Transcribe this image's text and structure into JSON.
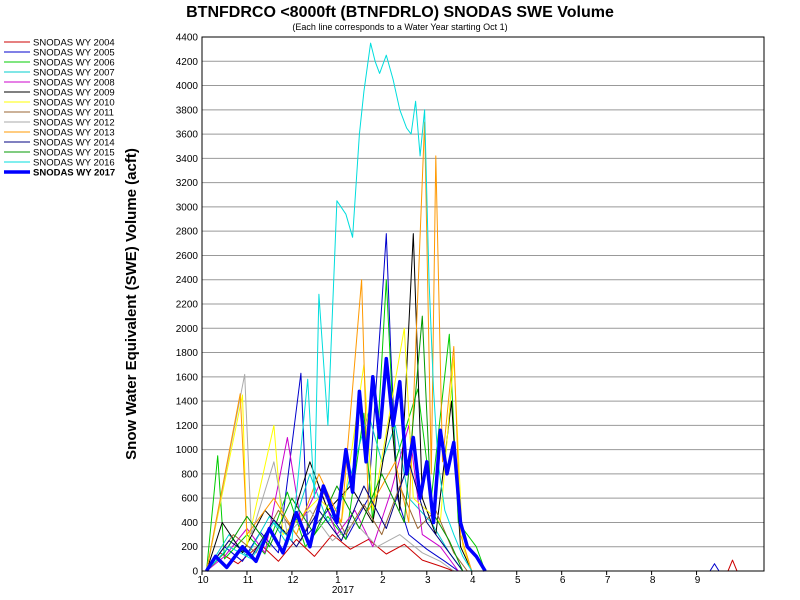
{
  "chart_data": {
    "type": "line",
    "title": "BTNFDRCO <8000ft (BTNFDRLO) SNODAS SWE Volume",
    "subtitle": "(Each line corresponds to a Water Year starting Oct 1)",
    "ylabel": "Snow Water Equivalent (SWE) Volume (acft)",
    "xlabel": "",
    "year_label": "2017",
    "ylim": [
      0,
      4400
    ],
    "y_ticks": [
      "0",
      "200",
      "400",
      "600",
      "800",
      "1000",
      "1200",
      "1400",
      "1600",
      "1800",
      "2000",
      "2200",
      "2400",
      "2600",
      "2800",
      "3000",
      "3200",
      "3400",
      "3600",
      "3800",
      "4000",
      "4200",
      "4400"
    ],
    "x_ticks": [
      "10",
      "11",
      "12",
      "1",
      "2",
      "3",
      "4",
      "5",
      "6",
      "7",
      "8",
      "9"
    ],
    "grid": "horizontal",
    "legend_placement": "top-left",
    "series": [
      {
        "name": "SNODAS WY 2004",
        "color": "#cc0000",
        "width": 1,
        "points": [
          [
            0.1,
            0
          ],
          [
            0.4,
            150
          ],
          [
            0.8,
            60
          ],
          [
            1.3,
            220
          ],
          [
            1.7,
            80
          ],
          [
            2.1,
            260
          ],
          [
            2.5,
            120
          ],
          [
            2.9,
            300
          ],
          [
            3.3,
            180
          ],
          [
            3.7,
            260
          ],
          [
            4.1,
            140
          ],
          [
            4.5,
            220
          ],
          [
            4.9,
            90
          ],
          [
            5.3,
            40
          ],
          [
            5.6,
            0
          ],
          [
            11.7,
            0
          ],
          [
            11.8,
            90
          ],
          [
            11.9,
            0
          ]
        ]
      },
      {
        "name": "SNODAS WY 2005",
        "color": "#0000cc",
        "width": 1,
        "points": [
          [
            0.1,
            0
          ],
          [
            0.5,
            200
          ],
          [
            0.9,
            80
          ],
          [
            1.3,
            320
          ],
          [
            1.7,
            150
          ],
          [
            2.2,
            1630
          ],
          [
            2.35,
            300
          ],
          [
            2.8,
            500
          ],
          [
            3.2,
            260
          ],
          [
            3.7,
            600
          ],
          [
            4.0,
            2200
          ],
          [
            4.1,
            2780
          ],
          [
            4.2,
            1800
          ],
          [
            4.35,
            600
          ],
          [
            4.6,
            300
          ],
          [
            5.0,
            180
          ],
          [
            5.4,
            80
          ],
          [
            5.7,
            0
          ],
          [
            11.3,
            0
          ],
          [
            11.4,
            60
          ],
          [
            11.5,
            0
          ]
        ]
      },
      {
        "name": "SNODAS WY 2006",
        "color": "#00cc00",
        "width": 1,
        "points": [
          [
            0.1,
            0
          ],
          [
            0.35,
            950
          ],
          [
            0.5,
            100
          ],
          [
            1.0,
            300
          ],
          [
            1.4,
            140
          ],
          [
            1.9,
            650
          ],
          [
            2.3,
            200
          ],
          [
            2.8,
            450
          ],
          [
            3.2,
            260
          ],
          [
            3.6,
            1300
          ],
          [
            3.8,
            400
          ],
          [
            4.1,
            2400
          ],
          [
            4.3,
            900
          ],
          [
            4.8,
            1500
          ],
          [
            5.1,
            600
          ],
          [
            5.5,
            1950
          ],
          [
            5.7,
            400
          ],
          [
            6.1,
            200
          ],
          [
            6.3,
            0
          ]
        ]
      },
      {
        "name": "SNODAS WY 2007",
        "color": "#00cccc",
        "width": 1,
        "points": [
          [
            0.1,
            0
          ],
          [
            0.6,
            300
          ],
          [
            1.0,
            120
          ],
          [
            1.5,
            450
          ],
          [
            1.9,
            220
          ],
          [
            2.4,
            800
          ],
          [
            2.8,
            400
          ],
          [
            3.2,
            650
          ],
          [
            3.7,
            1300
          ],
          [
            4.0,
            900
          ],
          [
            4.3,
            1200
          ],
          [
            4.6,
            600
          ],
          [
            5.1,
            400
          ],
          [
            5.5,
            150
          ],
          [
            5.8,
            0
          ]
        ]
      },
      {
        "name": "SNODAS WY 2008",
        "color": "#cc00cc",
        "width": 1,
        "points": [
          [
            0.1,
            0
          ],
          [
            0.5,
            120
          ],
          [
            1.0,
            350
          ],
          [
            1.4,
            150
          ],
          [
            1.9,
            1100
          ],
          [
            2.2,
            400
          ],
          [
            2.6,
            700
          ],
          [
            3.0,
            300
          ],
          [
            3.4,
            500
          ],
          [
            3.8,
            200
          ],
          [
            4.2,
            650
          ],
          [
            4.6,
            1200
          ],
          [
            4.9,
            300
          ],
          [
            5.3,
            200
          ],
          [
            5.7,
            0
          ]
        ]
      },
      {
        "name": "SNODAS WY 2009",
        "color": "#000000",
        "width": 1,
        "points": [
          [
            0.1,
            0
          ],
          [
            0.45,
            400
          ],
          [
            0.9,
            150
          ],
          [
            1.4,
            500
          ],
          [
            1.9,
            300
          ],
          [
            2.4,
            900
          ],
          [
            2.8,
            500
          ],
          [
            3.3,
            700
          ],
          [
            3.8,
            400
          ],
          [
            4.2,
            1300
          ],
          [
            4.4,
            500
          ],
          [
            4.7,
            2780
          ],
          [
            4.9,
            600
          ],
          [
            5.2,
            300
          ],
          [
            5.55,
            1400
          ],
          [
            5.75,
            200
          ],
          [
            6.0,
            0
          ]
        ]
      },
      {
        "name": "SNODAS WY 2010",
        "color": "#ffff00",
        "width": 1,
        "points": [
          [
            0.1,
            0
          ],
          [
            0.9,
            1450
          ],
          [
            1.0,
            200
          ],
          [
            1.6,
            1200
          ],
          [
            1.8,
            300
          ],
          [
            2.6,
            600
          ],
          [
            3.1,
            400
          ],
          [
            3.6,
            1700
          ],
          [
            3.8,
            500
          ],
          [
            4.5,
            2000
          ],
          [
            4.7,
            600
          ],
          [
            5.3,
            400
          ],
          [
            5.6,
            1760
          ],
          [
            5.8,
            200
          ],
          [
            6.0,
            0
          ]
        ]
      },
      {
        "name": "SNODAS WY 2011",
        "color": "#996633",
        "width": 1,
        "points": [
          [
            0.1,
            0
          ],
          [
            0.7,
            300
          ],
          [
            1.2,
            150
          ],
          [
            1.7,
            500
          ],
          [
            2.2,
            250
          ],
          [
            2.7,
            650
          ],
          [
            3.2,
            300
          ],
          [
            3.6,
            550
          ],
          [
            4.0,
            300
          ],
          [
            4.4,
            700
          ],
          [
            4.8,
            350
          ],
          [
            5.2,
            500
          ],
          [
            5.6,
            150
          ],
          [
            5.9,
            0
          ]
        ]
      },
      {
        "name": "SNODAS WY 2012",
        "color": "#aaaaaa",
        "width": 1,
        "points": [
          [
            0.1,
            0
          ],
          [
            0.95,
            1620
          ],
          [
            1.1,
            300
          ],
          [
            1.6,
            900
          ],
          [
            1.9,
            300
          ],
          [
            2.4,
            500
          ],
          [
            2.9,
            250
          ],
          [
            3.4,
            400
          ],
          [
            3.9,
            200
          ],
          [
            4.4,
            300
          ],
          [
            4.9,
            150
          ],
          [
            5.3,
            80
          ],
          [
            5.6,
            0
          ]
        ]
      },
      {
        "name": "SNODAS WY 2013",
        "color": "#ff9900",
        "width": 1,
        "points": [
          [
            0.1,
            0
          ],
          [
            0.85,
            1460
          ],
          [
            1.0,
            300
          ],
          [
            1.6,
            600
          ],
          [
            2.1,
            300
          ],
          [
            2.6,
            800
          ],
          [
            3.1,
            400
          ],
          [
            3.55,
            2400
          ],
          [
            3.7,
            500
          ],
          [
            4.3,
            900
          ],
          [
            4.6,
            400
          ],
          [
            4.95,
            3700
          ],
          [
            5.1,
            800
          ],
          [
            5.2,
            3420
          ],
          [
            5.35,
            900
          ],
          [
            5.6,
            1850
          ],
          [
            5.75,
            300
          ],
          [
            6.0,
            0
          ]
        ]
      },
      {
        "name": "SNODAS WY 2014",
        "color": "#000080",
        "width": 1,
        "points": [
          [
            0.1,
            0
          ],
          [
            0.6,
            250
          ],
          [
            1.1,
            120
          ],
          [
            1.6,
            420
          ],
          [
            2.1,
            200
          ],
          [
            2.6,
            500
          ],
          [
            3.1,
            250
          ],
          [
            3.6,
            700
          ],
          [
            4.1,
            350
          ],
          [
            4.6,
            900
          ],
          [
            5.0,
            400
          ],
          [
            5.4,
            200
          ],
          [
            5.8,
            0
          ]
        ]
      },
      {
        "name": "SNODAS WY 2015",
        "color": "#009900",
        "width": 1,
        "points": [
          [
            0.1,
            0
          ],
          [
            0.5,
            150
          ],
          [
            1.0,
            450
          ],
          [
            1.5,
            200
          ],
          [
            2.0,
            600
          ],
          [
            2.5,
            300
          ],
          [
            3.0,
            700
          ],
          [
            3.5,
            350
          ],
          [
            4.0,
            800
          ],
          [
            4.5,
            400
          ],
          [
            4.9,
            2100
          ],
          [
            5.1,
            500
          ],
          [
            5.5,
            250
          ],
          [
            5.8,
            0
          ]
        ]
      },
      {
        "name": "SNODAS WY 2016",
        "color": "#00dddd",
        "width": 1,
        "points": [
          [
            0.1,
            0
          ],
          [
            0.6,
            200
          ],
          [
            1.1,
            100
          ],
          [
            1.6,
            400
          ],
          [
            2.0,
            250
          ],
          [
            2.35,
            1580
          ],
          [
            2.5,
            600
          ],
          [
            2.6,
            2280
          ],
          [
            2.8,
            1200
          ],
          [
            3.0,
            3050
          ],
          [
            3.2,
            2940
          ],
          [
            3.35,
            2750
          ],
          [
            3.5,
            3600
          ],
          [
            3.6,
            3950
          ],
          [
            3.75,
            4350
          ],
          [
            3.85,
            4200
          ],
          [
            3.95,
            4100
          ],
          [
            4.1,
            4250
          ],
          [
            4.25,
            4050
          ],
          [
            4.4,
            3800
          ],
          [
            4.55,
            3650
          ],
          [
            4.65,
            3600
          ],
          [
            4.75,
            3870
          ],
          [
            4.85,
            3420
          ],
          [
            4.95,
            3800
          ],
          [
            5.05,
            2400
          ],
          [
            5.15,
            1500
          ],
          [
            5.25,
            900
          ],
          [
            5.4,
            500
          ],
          [
            5.6,
            300
          ],
          [
            5.8,
            120
          ],
          [
            6.0,
            0
          ]
        ]
      },
      {
        "name": "SNODAS WY 2017",
        "color": "#0000ff",
        "width": 3.5,
        "points": [
          [
            0.1,
            0
          ],
          [
            0.3,
            120
          ],
          [
            0.55,
            30
          ],
          [
            0.9,
            200
          ],
          [
            1.2,
            80
          ],
          [
            1.5,
            350
          ],
          [
            1.8,
            150
          ],
          [
            2.1,
            480
          ],
          [
            2.4,
            200
          ],
          [
            2.7,
            700
          ],
          [
            3.0,
            400
          ],
          [
            3.2,
            1000
          ],
          [
            3.35,
            650
          ],
          [
            3.5,
            1480
          ],
          [
            3.65,
            900
          ],
          [
            3.8,
            1600
          ],
          [
            3.95,
            1100
          ],
          [
            4.1,
            1750
          ],
          [
            4.25,
            1200
          ],
          [
            4.4,
            1560
          ],
          [
            4.55,
            800
          ],
          [
            4.7,
            1100
          ],
          [
            4.85,
            600
          ],
          [
            5.0,
            900
          ],
          [
            5.15,
            400
          ],
          [
            5.3,
            1160
          ],
          [
            5.45,
            800
          ],
          [
            5.6,
            1060
          ],
          [
            5.75,
            400
          ],
          [
            5.9,
            200
          ],
          [
            6.1,
            120
          ],
          [
            6.3,
            0
          ]
        ]
      }
    ]
  }
}
